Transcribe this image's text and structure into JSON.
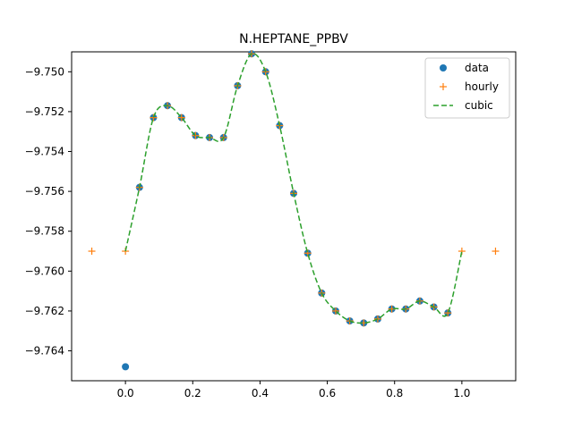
{
  "chart_data": {
    "type": "line",
    "title": "N.HEPTANE_PPBV",
    "xlabel": "",
    "ylabel": "",
    "xlim": [
      -0.16,
      1.16
    ],
    "ylim": [
      -9.7655,
      -9.749
    ],
    "xticks": [
      0.0,
      0.2,
      0.4,
      0.6,
      0.8,
      1.0
    ],
    "xtick_labels": [
      "0.0",
      "0.2",
      "0.4",
      "0.6",
      "0.8",
      "1.0"
    ],
    "yticks": [
      -9.764,
      -9.762,
      -9.76,
      -9.758,
      -9.756,
      -9.754,
      -9.752,
      -9.75
    ],
    "ytick_labels": [
      "−9.764",
      "−9.762",
      "−9.760",
      "−9.758",
      "−9.756",
      "−9.754",
      "−9.752",
      "−9.750"
    ],
    "grid": false,
    "legend_position": "top-right",
    "series": [
      {
        "name": "data",
        "style": "points",
        "marker": "circle",
        "color": "#1f77b4",
        "x": [
          0.0,
          0.0417,
          0.0833,
          0.125,
          0.1667,
          0.2083,
          0.25,
          0.2917,
          0.3333,
          0.375,
          0.4167,
          0.4583,
          0.5,
          0.5417,
          0.5833,
          0.625,
          0.6667,
          0.7083,
          0.75,
          0.7917,
          0.8333,
          0.875,
          0.9167,
          0.9583
        ],
        "y": [
          -9.7648,
          -9.7558,
          -9.7523,
          -9.7517,
          -9.7523,
          -9.7532,
          -9.7533,
          -9.7533,
          -9.7507,
          -9.7491,
          -9.75,
          -9.7527,
          -9.7561,
          -9.7591,
          -9.7611,
          -9.762,
          -9.7625,
          -9.7626,
          -9.7624,
          -9.7619,
          -9.7619,
          -9.7615,
          -9.7618,
          -9.7621
        ]
      },
      {
        "name": "hourly",
        "style": "points",
        "marker": "plus",
        "color": "#ff7f0e",
        "x": [
          -0.1,
          0.0,
          0.0417,
          0.0833,
          0.125,
          0.1667,
          0.2083,
          0.25,
          0.2917,
          0.3333,
          0.375,
          0.4167,
          0.4583,
          0.5,
          0.5417,
          0.5833,
          0.625,
          0.6667,
          0.7083,
          0.75,
          0.7917,
          0.8333,
          0.875,
          0.9167,
          0.9583,
          1.0,
          1.1
        ],
        "y": [
          -9.759,
          -9.759,
          -9.7558,
          -9.7523,
          -9.7517,
          -9.7523,
          -9.7532,
          -9.7533,
          -9.7533,
          -9.7507,
          -9.7491,
          -9.75,
          -9.7527,
          -9.7561,
          -9.7591,
          -9.7611,
          -9.762,
          -9.7625,
          -9.7626,
          -9.7624,
          -9.7619,
          -9.7619,
          -9.7615,
          -9.7618,
          -9.7621,
          -9.759,
          -9.759
        ]
      },
      {
        "name": "cubic",
        "style": "dashed-line",
        "color": "#2ca02c",
        "x": [
          0.0,
          0.0417,
          0.0833,
          0.125,
          0.1667,
          0.2083,
          0.25,
          0.2917,
          0.3333,
          0.375,
          0.4167,
          0.4583,
          0.5,
          0.5417,
          0.5833,
          0.625,
          0.6667,
          0.7083,
          0.75,
          0.7917,
          0.8333,
          0.875,
          0.9167,
          0.9583,
          1.0
        ],
        "y": [
          -9.759,
          -9.7558,
          -9.7523,
          -9.7517,
          -9.7523,
          -9.7532,
          -9.7533,
          -9.7533,
          -9.7507,
          -9.7491,
          -9.75,
          -9.7527,
          -9.7561,
          -9.7591,
          -9.7611,
          -9.762,
          -9.7625,
          -9.7626,
          -9.7624,
          -9.7619,
          -9.7619,
          -9.7615,
          -9.7618,
          -9.7621,
          -9.759
        ]
      }
    ]
  }
}
